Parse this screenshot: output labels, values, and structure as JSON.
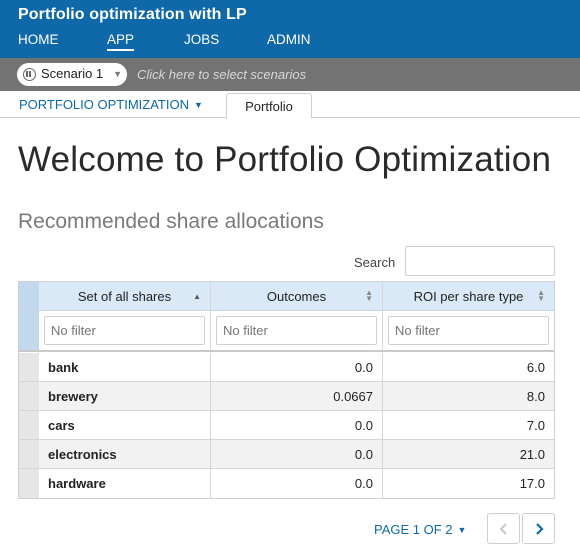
{
  "header": {
    "title": "Portfolio optimization with LP",
    "nav": [
      {
        "label": "HOME"
      },
      {
        "label": "APP"
      },
      {
        "label": "JOBS"
      },
      {
        "label": "ADMIN"
      }
    ],
    "active_nav": "APP"
  },
  "scenario": {
    "selected": "Scenario 1",
    "hint": "Click here to select scenarios"
  },
  "tabs": {
    "breadcrumb": "PORTFOLIO OPTIMIZATION",
    "active_tab": "Portfolio"
  },
  "main": {
    "title": "Welcome to Portfolio Optimization",
    "section_title": "Recommended share allocations",
    "search_label": "Search",
    "search_value": ""
  },
  "table": {
    "columns": [
      {
        "label": "Set of all shares",
        "sort": "ascending"
      },
      {
        "label": "Outcomes",
        "sort": "none"
      },
      {
        "label": "ROI per share type",
        "sort": "none"
      }
    ],
    "filter_placeholder": "No filter",
    "rows": [
      {
        "share": "bank",
        "outcome": "0.0",
        "roi": "6.0"
      },
      {
        "share": "brewery",
        "outcome": "0.0667",
        "roi": "8.0"
      },
      {
        "share": "cars",
        "outcome": "0.0",
        "roi": "7.0"
      },
      {
        "share": "electronics",
        "outcome": "0.0",
        "roi": "21.0"
      },
      {
        "share": "hardware",
        "outcome": "0.0",
        "roi": "17.0"
      }
    ]
  },
  "pager": {
    "label": "PAGE 1 OF 2",
    "prev_icon": "chevron-left-icon",
    "next_icon": "chevron-right-icon"
  },
  "colors": {
    "brand": "#0f69a8",
    "scenario_bar": "#737373",
    "table_header": "#d9e9f7"
  }
}
